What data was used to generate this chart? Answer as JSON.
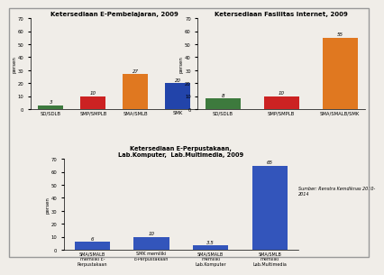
{
  "chart1": {
    "title": "Ketersediaan E-Pembelajaran, 2009",
    "categories": [
      "SD/SDLB",
      "SMP/SMPLB",
      "SMA/SMLB",
      "SMK"
    ],
    "values": [
      3,
      10,
      27,
      20
    ],
    "colors": [
      "#3d7a3d",
      "#cc2222",
      "#e07820",
      "#2244aa"
    ],
    "ylim": [
      0,
      70
    ],
    "yticks": [
      0,
      10,
      20,
      30,
      40,
      50,
      60,
      70
    ]
  },
  "chart2": {
    "title": "Ketersediaan Fasilitas Internet, 2009",
    "categories": [
      "SD/SDLB",
      "SMP/SMPLB",
      "SMA/SMALB/SMK"
    ],
    "values": [
      8,
      10,
      55
    ],
    "colors": [
      "#3d7a3d",
      "#cc2222",
      "#e07820"
    ],
    "ylim": [
      0,
      70
    ],
    "yticks": [
      0,
      10,
      20,
      30,
      40,
      50,
      60,
      70
    ]
  },
  "chart3": {
    "title": "Ketersediaan E-Perpustakaan,\nLab.Komputer,  Lab.Multimedia, 2009",
    "categories": [
      "SMA/SMALB\nmemiliki E-\nPerpustakaan",
      "SMK memiliki\nE-Perpustakaan",
      "SMA/SMALB\nmemiliki\nLab.Komputer",
      "SMA/SMLB\nmemiliki\nLab.Multimedia"
    ],
    "values": [
      6,
      10,
      3.5,
      65
    ],
    "colors": [
      "#3355bb",
      "#3355bb",
      "#3355bb",
      "#3355bb"
    ],
    "ylim": [
      0,
      70
    ],
    "yticks": [
      0,
      10,
      20,
      30,
      40,
      50,
      60,
      70
    ]
  },
  "ylabel": "persen",
  "source_text": "Sumber: Renstra Kemdiknas 2010-\n2014",
  "bg_color": "#f0ede8",
  "border_color": "#999999"
}
